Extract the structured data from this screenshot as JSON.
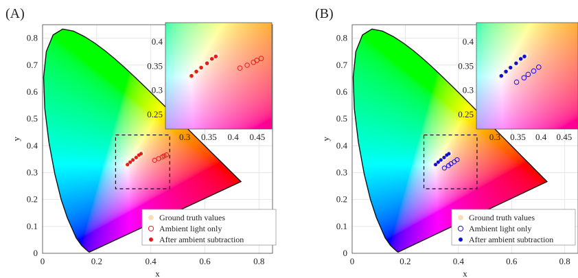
{
  "chart_data": [
    {
      "panel_label": "(A)",
      "type": "scatter",
      "xlabel": "x",
      "ylabel": "y",
      "xlim": [
        0,
        0.85
      ],
      "ylim": [
        0,
        0.85
      ],
      "xticks": [
        0,
        0.2,
        0.4,
        0.6,
        0.8
      ],
      "xtick_labels": [
        "0",
        "0.2",
        "0.4",
        "0.6",
        "0.8"
      ],
      "yticks": [
        0,
        0.1,
        0.2,
        0.3,
        0.4,
        0.5,
        0.6,
        0.7,
        0.8
      ],
      "ytick_labels": [
        "0",
        "0.1",
        "0.2",
        "0.3",
        "0.4",
        "0.5",
        "0.6",
        "0.7",
        "0.8"
      ],
      "grid": true,
      "zoom_box": [
        0.27,
        0.24,
        0.47,
        0.44
      ],
      "accent_color": "#e41a1c",
      "ground_truth_color": "#f5deb3",
      "series": [
        {
          "name": "Ground truth values",
          "marker": "filled",
          "color": "#f5deb3",
          "points": [
            [
              0.313,
              0.329
            ],
            [
              0.323,
              0.338
            ],
            [
              0.333,
              0.347
            ],
            [
              0.346,
              0.356
            ],
            [
              0.357,
              0.366
            ],
            [
              0.365,
              0.372
            ]
          ]
        },
        {
          "name": "Ambient light only",
          "marker": "open",
          "color": "#e41a1c",
          "points": [
            [
              0.414,
              0.346
            ],
            [
              0.429,
              0.352
            ],
            [
              0.442,
              0.358
            ],
            [
              0.449,
              0.362
            ],
            [
              0.458,
              0.366
            ]
          ]
        },
        {
          "name": "After ambient subtraction",
          "marker": "filled",
          "color": "#e41a1c",
          "points": [
            [
              0.314,
              0.33
            ],
            [
              0.324,
              0.339
            ],
            [
              0.334,
              0.347
            ],
            [
              0.346,
              0.356
            ],
            [
              0.356,
              0.365
            ],
            [
              0.364,
              0.37
            ]
          ]
        }
      ],
      "inset": {
        "xlim": [
          0.26,
          0.48
        ],
        "ylim": [
          0.22,
          0.44
        ],
        "xticks": [
          0.3,
          0.35,
          0.4,
          0.45
        ],
        "xtick_labels": [
          "0.3",
          "0.35",
          "0.4",
          "0.45"
        ],
        "yticks": [
          0.25,
          0.3,
          0.35,
          0.4
        ],
        "ytick_labels": [
          "0.25",
          "0.3",
          "0.35",
          "0.4"
        ]
      },
      "legend": {
        "position": "bottom-right",
        "entries": [
          "Ground truth values",
          "Ambient light only",
          "After ambient subtraction"
        ]
      }
    },
    {
      "panel_label": "(B)",
      "type": "scatter",
      "xlabel": "x",
      "ylabel": "y",
      "xlim": [
        0,
        0.85
      ],
      "ylim": [
        0,
        0.85
      ],
      "xticks": [
        0,
        0.2,
        0.4,
        0.6,
        0.8
      ],
      "xtick_labels": [
        "0",
        "0.2",
        "0.4",
        "0.6",
        "0.8"
      ],
      "yticks": [
        0,
        0.1,
        0.2,
        0.3,
        0.4,
        0.5,
        0.6,
        0.7,
        0.8
      ],
      "ytick_labels": [
        "0",
        "0.1",
        "0.2",
        "0.3",
        "0.4",
        "0.5",
        "0.6",
        "0.7",
        "0.8"
      ],
      "grid": true,
      "zoom_box": [
        0.27,
        0.24,
        0.47,
        0.44
      ],
      "accent_color": "#1010d0",
      "ground_truth_color": "#f5deb3",
      "series": [
        {
          "name": "Ground truth values",
          "marker": "filled",
          "color": "#f5deb3",
          "points": [
            [
              0.313,
              0.329
            ],
            [
              0.323,
              0.338
            ],
            [
              0.333,
              0.347
            ],
            [
              0.346,
              0.356
            ],
            [
              0.357,
              0.366
            ],
            [
              0.365,
              0.372
            ]
          ]
        },
        {
          "name": "Ambient light only",
          "marker": "open",
          "color": "#1010d0",
          "points": [
            [
              0.347,
              0.317
            ],
            [
              0.363,
              0.326
            ],
            [
              0.372,
              0.333
            ],
            [
              0.384,
              0.34
            ],
            [
              0.395,
              0.348
            ]
          ]
        },
        {
          "name": "After ambient subtraction",
          "marker": "filled",
          "color": "#1010d0",
          "points": [
            [
              0.314,
              0.33
            ],
            [
              0.324,
              0.339
            ],
            [
              0.334,
              0.347
            ],
            [
              0.346,
              0.356
            ],
            [
              0.356,
              0.365
            ],
            [
              0.364,
              0.37
            ]
          ]
        }
      ],
      "inset": {
        "xlim": [
          0.26,
          0.48
        ],
        "ylim": [
          0.22,
          0.44
        ],
        "xticks": [
          0.3,
          0.35,
          0.4,
          0.45
        ],
        "xtick_labels": [
          "0.3",
          "0.35",
          "0.4",
          "0.45"
        ],
        "yticks": [
          0.25,
          0.3,
          0.35,
          0.4
        ],
        "ytick_labels": [
          "0.25",
          "0.3",
          "0.35",
          "0.4"
        ]
      },
      "legend": {
        "position": "bottom-right",
        "entries": [
          "Ground truth values",
          "Ambient light only",
          "After ambient subtraction"
        ]
      }
    }
  ]
}
